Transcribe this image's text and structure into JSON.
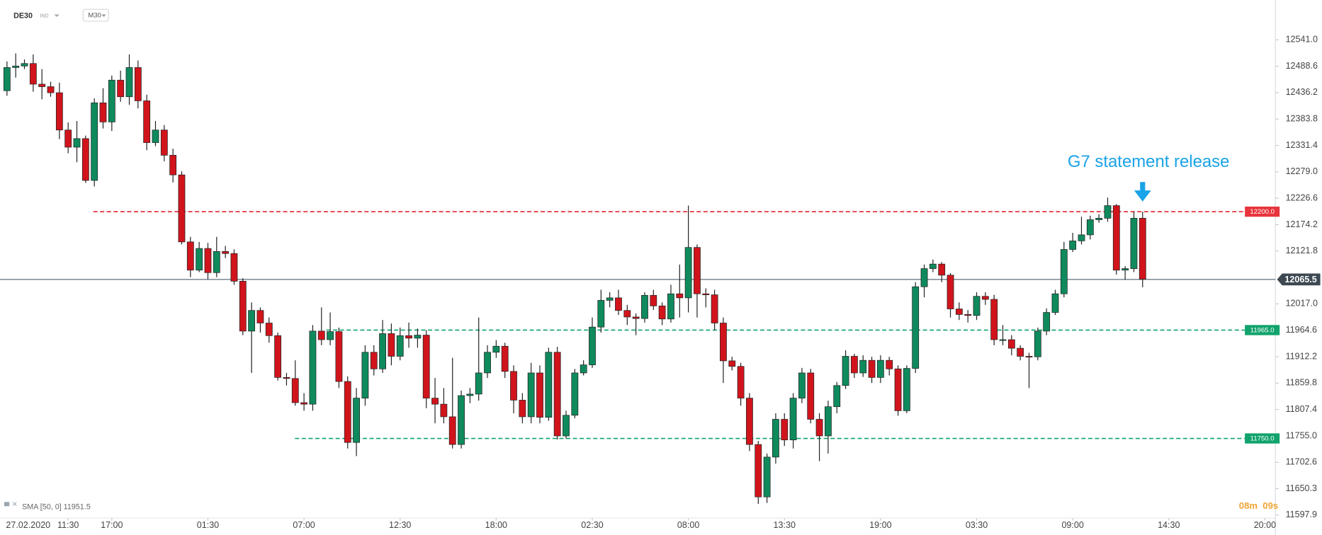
{
  "header": {
    "symbol": "DE30",
    "market": "IND",
    "timeframe": "M30"
  },
  "chart_data": {
    "type": "candlestick",
    "up_color": "#0f8a5c",
    "down_color": "#d1141c",
    "open": [
      12440,
      12486,
      12489,
      12494,
      12453,
      12448,
      12436,
      12362,
      12328,
      12345,
      12262,
      12416,
      12378,
      12461,
      12428,
      12486,
      12420,
      12337,
      12362,
      12312,
      12273,
      12140,
      12084,
      12127,
      12079,
      12121,
      12117,
      12062,
      11963,
      12004,
      11979,
      11954,
      11871,
      11869,
      11821,
      11818,
      11963,
      11946,
      11962,
      11863,
      11742,
      11830,
      11921,
      11888,
      11958,
      11913,
      11954,
      11949,
      11955,
      11830,
      11818,
      11793,
      11738,
      11835,
      11838,
      11880,
      11921,
      11933,
      11883,
      11826,
      11793,
      11880,
      11792,
      11921,
      11755,
      11796,
      11880,
      11896,
      11971,
      12024,
      12029,
      12004,
      11991,
      11988,
      12034,
      12013,
      11987,
      12037,
      12029,
      12129,
      12037,
      12035,
      11979,
      11904,
      11893,
      11830,
      11738,
      11634,
      11713,
      11788,
      11747,
      11830,
      11880,
      11788,
      11755,
      11813,
      11855,
      11913,
      11880,
      11905,
      11871,
      11905,
      11888,
      11805,
      11889,
      12051,
      12087,
      12096,
      12074,
      12007,
      11996,
      11994,
      12032,
      12026,
      11946,
      11946,
      11929,
      11913,
      11912,
      11963,
      12000,
      12037,
      12125,
      12142,
      12154,
      12184,
      12187,
      12212,
      12084,
      12087,
      12187
    ],
    "high": [
      12498,
      12514,
      12502,
      12512,
      12483,
      12458,
      12456,
      12377,
      12380,
      12351,
      12425,
      12445,
      12470,
      12480,
      12512,
      12500,
      12432,
      12380,
      12372,
      12325,
      12280,
      12150,
      12140,
      12138,
      12150,
      12132,
      12125,
      12068,
      12020,
      12010,
      11990,
      11960,
      11880,
      11905,
      11840,
      11975,
      12010,
      12000,
      11970,
      11873,
      11850,
      11935,
      11935,
      11985,
      11978,
      11970,
      11980,
      11968,
      11965,
      11870,
      11850,
      11910,
      11845,
      11850,
      11990,
      11935,
      11945,
      11940,
      11895,
      11840,
      11900,
      11895,
      11930,
      11932,
      11805,
      11888,
      11905,
      11990,
      12045,
      12040,
      12045,
      12015,
      11998,
      12040,
      12045,
      12020,
      12055,
      12095,
      12212,
      12135,
      12048,
      12045,
      11990,
      11912,
      11900,
      11840,
      11745,
      11720,
      11800,
      11800,
      11840,
      11890,
      11888,
      11800,
      11825,
      11862,
      11925,
      11918,
      11915,
      11912,
      11915,
      11912,
      11895,
      11895,
      12060,
      12095,
      12105,
      12100,
      12078,
      12020,
      12005,
      12040,
      12040,
      12035,
      11975,
      11955,
      11935,
      11920,
      11970,
      12008,
      12045,
      12140,
      12158,
      12190,
      12192,
      12195,
      12228,
      12215,
      12092,
      12200,
      12200
    ],
    "low": [
      12430,
      12466,
      12483,
      12438,
      12423,
      12428,
      12344,
      12316,
      12298,
      12257,
      12250,
      12365,
      12360,
      12418,
      12412,
      12405,
      12322,
      12330,
      12300,
      12258,
      12135,
      12070,
      12080,
      12066,
      12070,
      12108,
      12055,
      11955,
      11880,
      11960,
      11940,
      11865,
      11855,
      11815,
      11805,
      11805,
      11935,
      11935,
      11850,
      11730,
      11715,
      11815,
      11875,
      11880,
      11895,
      11905,
      11930,
      11930,
      11810,
      11780,
      11780,
      11730,
      11730,
      11820,
      11825,
      11870,
      11910,
      11870,
      11800,
      11780,
      11780,
      11780,
      11785,
      11748,
      11750,
      11790,
      11875,
      11890,
      11960,
      12010,
      11995,
      11975,
      11955,
      11980,
      12005,
      11975,
      11980,
      11990,
      12000,
      11990,
      12010,
      11965,
      11860,
      11885,
      11815,
      11725,
      11620,
      11622,
      11700,
      11735,
      11730,
      11820,
      11780,
      11705,
      11720,
      11800,
      11848,
      11870,
      11872,
      11860,
      11860,
      11875,
      11795,
      11800,
      11880,
      12030,
      12080,
      12060,
      11990,
      11985,
      11980,
      11985,
      12015,
      11935,
      11935,
      11915,
      11905,
      11850,
      11905,
      11955,
      11995,
      12030,
      12120,
      12135,
      12145,
      12178,
      12180,
      12075,
      12065,
      12080,
      12050
    ],
    "close": [
      12486,
      12489,
      12494,
      12453,
      12448,
      12436,
      12362,
      12328,
      12345,
      12262,
      12416,
      12378,
      12461,
      12428,
      12486,
      12420,
      12337,
      12362,
      12312,
      12273,
      12140,
      12084,
      12127,
      12079,
      12121,
      12117,
      12062,
      11963,
      12004,
      11979,
      11954,
      11871,
      11869,
      11821,
      11818,
      11963,
      11946,
      11962,
      11863,
      11742,
      11830,
      11921,
      11888,
      11958,
      11913,
      11954,
      11949,
      11955,
      11830,
      11818,
      11793,
      11738,
      11835,
      11838,
      11880,
      11921,
      11933,
      11883,
      11826,
      11793,
      11880,
      11792,
      11921,
      11755,
      11796,
      11880,
      11896,
      11971,
      12024,
      12029,
      12004,
      11991,
      11988,
      12034,
      12013,
      11987,
      12037,
      12029,
      12129,
      12037,
      12035,
      11979,
      11904,
      11893,
      11830,
      11738,
      11634,
      11713,
      11788,
      11747,
      11830,
      11880,
      11788,
      11755,
      11813,
      11855,
      11913,
      11880,
      11905,
      11871,
      11905,
      11888,
      11805,
      11889,
      12051,
      12087,
      12096,
      12074,
      12007,
      11996,
      11994,
      12032,
      12026,
      11946,
      11946,
      11929,
      11913,
      11912,
      11963,
      12000,
      12037,
      12125,
      12142,
      12154,
      12184,
      12187,
      12212,
      12084,
      12087,
      12187,
      12066
    ],
    "xlim": [
      -0.8,
      145.2
    ],
    "xticks": [
      {
        "value": 7,
        "label": "11:30"
      },
      {
        "value": 12,
        "label": "17:00"
      },
      {
        "value": 23,
        "label": "01:30"
      },
      {
        "value": 34,
        "label": "07:00"
      },
      {
        "value": 45,
        "label": "12:30"
      },
      {
        "value": 56,
        "label": "18:00"
      },
      {
        "value": 67,
        "label": "02:30"
      },
      {
        "value": 78,
        "label": "08:00"
      },
      {
        "value": 89,
        "label": "13:30"
      },
      {
        "value": 100,
        "label": "19:00"
      },
      {
        "value": 111,
        "label": "03:30"
      },
      {
        "value": 122,
        "label": "09:00"
      },
      {
        "value": 133,
        "label": "14:30"
      },
      {
        "value": 144,
        "label": "20:00"
      }
    ],
    "date_label": "27.02.2020",
    "ylim": [
      11592,
      12620
    ],
    "yticks": [
      {
        "value": 12541,
        "label": "12541.0"
      },
      {
        "value": 12488.6,
        "label": "12488.6"
      },
      {
        "value": 12436.2,
        "label": "12436.2"
      },
      {
        "value": 12383.8,
        "label": "12383.8"
      },
      {
        "value": 12331.4,
        "label": "12331.4"
      },
      {
        "value": 12279,
        "label": "12279.0"
      },
      {
        "value": 12226.6,
        "label": "12226.6"
      },
      {
        "value": 12174.2,
        "label": "12174.2"
      },
      {
        "value": 12121.8,
        "label": "12121.8"
      },
      {
        "value": 12017,
        "label": "12017.0"
      },
      {
        "value": 11964.6,
        "label": "11964.6"
      },
      {
        "value": 11912.2,
        "label": "11912.2"
      },
      {
        "value": 11859.8,
        "label": "11859.8"
      },
      {
        "value": 11807.4,
        "label": "11807.4"
      },
      {
        "value": 11755,
        "label": "11755.0"
      },
      {
        "value": 11702.6,
        "label": "11702.6"
      },
      {
        "value": 11650.3,
        "label": "11650.3"
      },
      {
        "value": 11597.9,
        "label": "11597.9"
      }
    ],
    "levels": [
      {
        "value": 12200,
        "label": "12200.0",
        "color": "#e8343c"
      },
      {
        "value": 11965,
        "label": "11965.0",
        "color": "#10a36b"
      },
      {
        "value": 11750,
        "label": "11750.0",
        "color": "#10a36b"
      }
    ],
    "current_price": {
      "value": 12065.5,
      "label": "12065.5"
    },
    "annotation": "G7 statement release",
    "indicator": "SMA [50, 0] 11951.5",
    "timer": {
      "minutes": "08m",
      "seconds": "09s"
    }
  }
}
